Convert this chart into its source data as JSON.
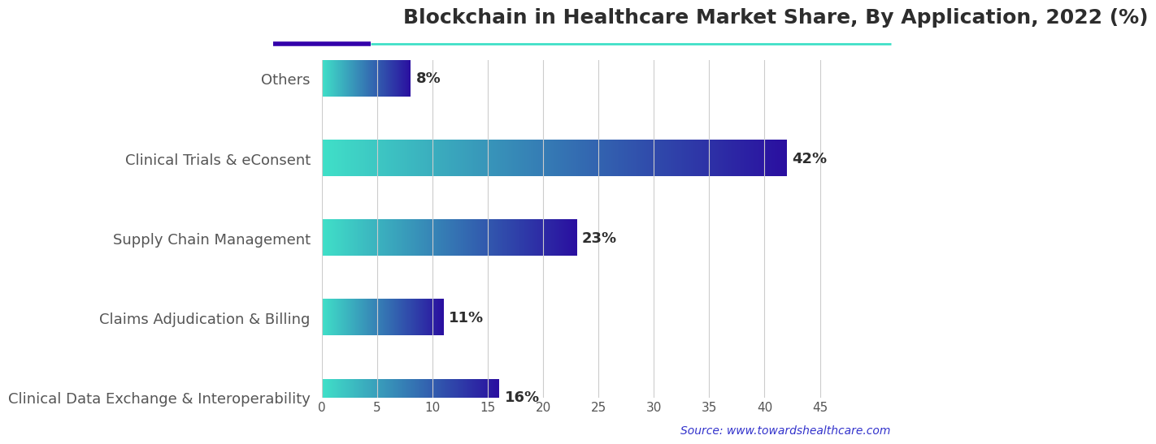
{
  "title": "Blockchain in Healthcare Market Share, By Application, 2022 (%)",
  "categories": [
    "Clinical Data Exchange & Interoperability",
    "Claims Adjudication & Billing",
    "Supply Chain Management",
    "Clinical Trials & eConsent",
    "Others"
  ],
  "values": [
    16,
    11,
    23,
    42,
    8
  ],
  "labels": [
    "16%",
    "11%",
    "23%",
    "42%",
    "8%"
  ],
  "xlim": [
    0,
    47
  ],
  "xticks": [
    0,
    5,
    10,
    15,
    20,
    25,
    30,
    35,
    40,
    45
  ],
  "bar_height": 0.45,
  "gradient_start": "#40E0C8",
  "gradient_end": "#2A0FA0",
  "background_color": "#ffffff",
  "title_color": "#2d2d2d",
  "title_fontsize": 18,
  "label_fontsize": 13,
  "tick_label_fontsize": 11,
  "value_label_fontsize": 13,
  "source_text": "Source: www.towardshealthcare.com",
  "source_color": "#3333cc",
  "grid_color": "#cccccc",
  "axis_label_color": "#555555",
  "header_line1_color": "#3300aa",
  "header_line2_color": "#40E0C8"
}
